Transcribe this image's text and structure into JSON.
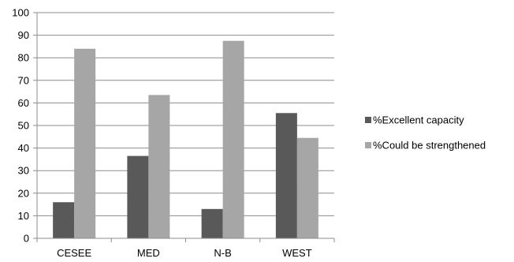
{
  "chart_data": {
    "type": "bar",
    "categories": [
      "CESEE",
      "MED",
      "N-B",
      "WEST"
    ],
    "series": [
      {
        "name": "%Excellent capacity",
        "values": [
          16,
          36.5,
          13,
          55.5
        ],
        "color": "#595959"
      },
      {
        "name": "%Could be strengthened",
        "values": [
          84,
          63.5,
          87.5,
          44.5
        ],
        "color": "#a6a6a6"
      }
    ],
    "title": "",
    "xlabel": "",
    "ylabel": "",
    "ylim": [
      0,
      100
    ],
    "yticks": [
      0,
      10,
      20,
      30,
      40,
      50,
      60,
      70,
      80,
      90,
      100
    ],
    "grid": true,
    "legend_position": "right"
  }
}
